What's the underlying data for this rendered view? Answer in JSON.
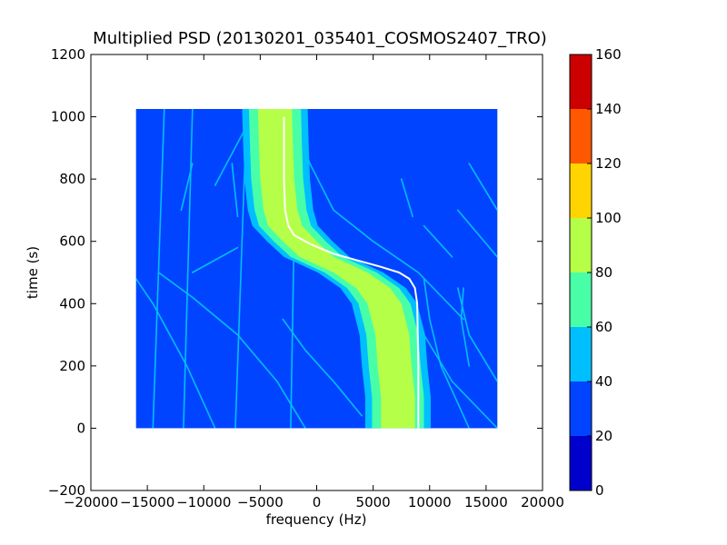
{
  "chart_data": {
    "type": "heatmap",
    "title": "Multiplied PSD (20130201_035401_COSMOS2407_TRO)",
    "xlabel": "frequency (Hz)",
    "ylabel": "time (s)",
    "xlim": [
      -20000,
      20000
    ],
    "ylim": [
      -200,
      1200
    ],
    "xticks": [
      -20000,
      -15000,
      -10000,
      -5000,
      0,
      5000,
      10000,
      15000,
      20000
    ],
    "xtick_labels": [
      "−20000",
      "−15000",
      "−10000",
      "−5000",
      "0",
      "5000",
      "10000",
      "15000",
      "20000"
    ],
    "yticks": [
      -200,
      0,
      200,
      400,
      600,
      800,
      1000,
      1200
    ],
    "ytick_labels": [
      "−200",
      "0",
      "200",
      "400",
      "600",
      "800",
      "1000",
      "1200"
    ],
    "data_extent": {
      "x": [
        -16000,
        16000
      ],
      "y": [
        0,
        1025
      ]
    },
    "background_level": 25,
    "main_signal": {
      "name": "",
      "points": [
        {
          "t": 0,
          "f": 7200
        },
        {
          "t": 100,
          "f": 7200
        },
        {
          "t": 200,
          "f": 6900
        },
        {
          "t": 300,
          "f": 6700
        },
        {
          "t": 400,
          "f": 6000
        },
        {
          "t": 450,
          "f": 5000
        },
        {
          "t": 500,
          "f": 3000
        },
        {
          "t": 550,
          "f": 0
        },
        {
          "t": 600,
          "f": -1500
        },
        {
          "t": 650,
          "f": -2800
        },
        {
          "t": 700,
          "f": -3200
        },
        {
          "t": 800,
          "f": -3500
        },
        {
          "t": 900,
          "f": -3600
        },
        {
          "t": 1025,
          "f": -3700
        }
      ],
      "bands": [
        {
          "level": 90,
          "half_width": 1500
        },
        {
          "level": 70,
          "half_width": 2300
        },
        {
          "level": 50,
          "half_width": 2900
        }
      ]
    },
    "white_trace": {
      "name": "",
      "points": [
        {
          "t": 0,
          "f": 9000
        },
        {
          "t": 200,
          "f": 9000
        },
        {
          "t": 400,
          "f": 8900
        },
        {
          "t": 450,
          "f": 8700
        },
        {
          "t": 480,
          "f": 8200
        },
        {
          "t": 500,
          "f": 7300
        },
        {
          "t": 520,
          "f": 5500
        },
        {
          "t": 540,
          "f": 3500
        },
        {
          "t": 560,
          "f": 1500
        },
        {
          "t": 590,
          "f": -500
        },
        {
          "t": 620,
          "f": -2000
        },
        {
          "t": 650,
          "f": -2500
        },
        {
          "t": 700,
          "f": -2800
        },
        {
          "t": 800,
          "f": -2900
        },
        {
          "t": 1000,
          "f": -2900
        }
      ]
    },
    "faint_lines": [
      {
        "level": 50,
        "points": [
          {
            "t": 0,
            "f": -14500
          },
          {
            "t": 1025,
            "f": -13500
          }
        ]
      },
      {
        "level": 50,
        "points": [
          {
            "t": 0,
            "f": -11800
          },
          {
            "t": 1025,
            "f": -11000
          }
        ]
      },
      {
        "level": 50,
        "points": [
          {
            "t": 0,
            "f": -7200
          },
          {
            "t": 1025,
            "f": -6200
          }
        ]
      },
      {
        "level": 50,
        "points": [
          {
            "t": 0,
            "f": -2300
          },
          {
            "t": 1025,
            "f": -1800
          }
        ]
      },
      {
        "level": 45,
        "points": [
          {
            "t": 0,
            "f": -9000
          },
          {
            "t": 200,
            "f": -11500
          },
          {
            "t": 400,
            "f": -14500
          },
          {
            "t": 480,
            "f": -16000
          }
        ]
      },
      {
        "level": 45,
        "points": [
          {
            "t": 0,
            "f": -1000
          },
          {
            "t": 150,
            "f": -3500
          },
          {
            "t": 300,
            "f": -7000
          },
          {
            "t": 420,
            "f": -11000
          },
          {
            "t": 500,
            "f": -14000
          }
        ]
      },
      {
        "level": 45,
        "points": [
          {
            "t": 40,
            "f": 4000
          },
          {
            "t": 150,
            "f": 1500
          },
          {
            "t": 250,
            "f": -1000
          },
          {
            "t": 350,
            "f": -3000
          }
        ]
      },
      {
        "level": 45,
        "points": [
          {
            "t": 0,
            "f": 16000
          },
          {
            "t": 150,
            "f": 12000
          },
          {
            "t": 300,
            "f": 9500
          },
          {
            "t": 450,
            "f": 7500
          }
        ]
      },
      {
        "level": 45,
        "points": [
          {
            "t": 0,
            "f": 13500
          },
          {
            "t": 200,
            "f": 11000
          },
          {
            "t": 350,
            "f": 10000
          },
          {
            "t": 480,
            "f": 9500
          }
        ]
      },
      {
        "level": 45,
        "points": [
          {
            "t": 150,
            "f": 16000
          },
          {
            "t": 300,
            "f": 13500
          },
          {
            "t": 450,
            "f": 12500
          }
        ]
      },
      {
        "level": 45,
        "points": [
          {
            "t": 200,
            "f": 13500
          },
          {
            "t": 350,
            "f": 12800
          },
          {
            "t": 450,
            "f": 13000
          }
        ]
      },
      {
        "level": 45,
        "points": [
          {
            "t": 350,
            "f": 13000
          },
          {
            "t": 500,
            "f": 9000
          },
          {
            "t": 600,
            "f": 5000
          },
          {
            "t": 700,
            "f": 1500
          },
          {
            "t": 850,
            "f": -600
          },
          {
            "t": 1000,
            "f": -2000
          }
        ]
      },
      {
        "level": 45,
        "points": [
          {
            "t": 550,
            "f": 12000
          },
          {
            "t": 650,
            "f": 9500
          }
        ]
      },
      {
        "level": 45,
        "points": [
          {
            "t": 550,
            "f": 16000
          },
          {
            "t": 700,
            "f": 12500
          }
        ]
      },
      {
        "level": 45,
        "points": [
          {
            "t": 680,
            "f": 8500
          },
          {
            "t": 800,
            "f": 7500
          }
        ]
      },
      {
        "level": 45,
        "points": [
          {
            "t": 700,
            "f": 16000
          },
          {
            "t": 850,
            "f": 13500
          }
        ]
      },
      {
        "level": 45,
        "points": [
          {
            "t": 680,
            "f": -7000
          },
          {
            "t": 850,
            "f": -7500
          }
        ]
      },
      {
        "level": 45,
        "points": [
          {
            "t": 700,
            "f": -12000
          },
          {
            "t": 850,
            "f": -11000
          }
        ]
      },
      {
        "level": 40,
        "points": [
          {
            "t": 780,
            "f": -9000
          },
          {
            "t": 950,
            "f": -6500
          },
          {
            "t": 1020,
            "f": -4800
          }
        ]
      },
      {
        "level": 45,
        "points": [
          {
            "t": 500,
            "f": -11000
          },
          {
            "t": 580,
            "f": -7000
          }
        ]
      },
      {
        "level": 45,
        "points": [
          {
            "t": 100,
            "f": 4500
          },
          {
            "t": 50,
            "f": 6500
          }
        ]
      }
    ],
    "colorbar": {
      "levels": [
        0,
        20,
        40,
        60,
        80,
        100,
        120,
        140,
        160
      ],
      "tick_labels": [
        "0",
        "20",
        "40",
        "60",
        "80",
        "100",
        "120",
        "140",
        "160"
      ],
      "colors": [
        "#0000cd",
        "#0044ff",
        "#00bfff",
        "#48ffa8",
        "#b6ff48",
        "#ffd400",
        "#ff5800",
        "#cd0000"
      ]
    },
    "grid": false,
    "legend": "none"
  }
}
